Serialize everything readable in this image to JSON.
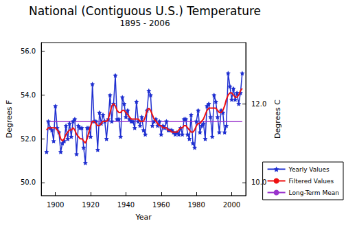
{
  "chart_data": {
    "type": "line",
    "title": "National (Contiguous U.S.) Temperature",
    "subtitle": "1895 - 2006",
    "x_label": "Year",
    "y_label": "Degrees F",
    "y2_label": "Degrees C",
    "legend": "right",
    "xlim": [
      1892,
      2008
    ],
    "xticks": [
      1900,
      1920,
      1940,
      1960,
      1980,
      2000
    ],
    "ylim": [
      49.4,
      56.4
    ],
    "yticks": [
      {
        "value": 50,
        "label": "50.0"
      },
      {
        "value": 52,
        "label": "52.0"
      },
      {
        "value": 54,
        "label": "54.0"
      },
      {
        "value": 56,
        "label": "56.0"
      }
    ],
    "y2lim": [
      9.667,
      13.556
    ],
    "y2ticks": [
      {
        "value": 10,
        "label": "10.0"
      },
      {
        "value": 12,
        "label": "12.0"
      }
    ],
    "x": [
      1895,
      1896,
      1897,
      1898,
      1899,
      1900,
      1901,
      1902,
      1903,
      1904,
      1905,
      1906,
      1907,
      1908,
      1909,
      1910,
      1911,
      1912,
      1913,
      1914,
      1915,
      1916,
      1917,
      1918,
      1919,
      1920,
      1921,
      1922,
      1923,
      1924,
      1925,
      1926,
      1927,
      1928,
      1929,
      1930,
      1931,
      1932,
      1933,
      1934,
      1935,
      1936,
      1937,
      1938,
      1939,
      1940,
      1941,
      1942,
      1943,
      1944,
      1945,
      1946,
      1947,
      1948,
      1949,
      1950,
      1951,
      1952,
      1953,
      1954,
      1955,
      1956,
      1957,
      1958,
      1959,
      1960,
      1961,
      1962,
      1963,
      1964,
      1965,
      1966,
      1967,
      1968,
      1969,
      1970,
      1971,
      1972,
      1973,
      1974,
      1975,
      1976,
      1977,
      1978,
      1979,
      1980,
      1981,
      1982,
      1983,
      1984,
      1985,
      1986,
      1987,
      1988,
      1989,
      1990,
      1991,
      1992,
      1993,
      1994,
      1995,
      1996,
      1997,
      1998,
      1999,
      2000,
      2001,
      2002,
      2003,
      2004,
      2005,
      2006
    ],
    "series": [
      {
        "name": "Yearly Values",
        "color": "#1f2fd0",
        "marker": "star",
        "line_style": "solid",
        "values": [
          51.4,
          52.8,
          52.5,
          52.4,
          51.9,
          53.5,
          52.5,
          52.3,
          51.4,
          51.8,
          51.9,
          52.6,
          52.0,
          52.7,
          52.1,
          52.8,
          52.9,
          51.3,
          52.6,
          52.5,
          52.5,
          51.6,
          50.9,
          52.5,
          52.5,
          52.1,
          54.5,
          52.8,
          52.8,
          51.5,
          53.2,
          52.7,
          53.1,
          52.8,
          52.0,
          52.9,
          54.0,
          52.8,
          53.6,
          54.9,
          52.9,
          52.9,
          52.1,
          53.9,
          53.6,
          53.0,
          53.3,
          52.9,
          52.8,
          52.8,
          52.5,
          53.7,
          52.8,
          52.6,
          53.0,
          52.4,
          52.2,
          53.3,
          54.2,
          54.0,
          52.6,
          52.8,
          52.9,
          52.6,
          52.8,
          52.2,
          52.6,
          52.5,
          52.8,
          52.4,
          52.4,
          52.4,
          52.3,
          52.2,
          52.3,
          52.2,
          52.5,
          52.2,
          52.9,
          52.9,
          52.2,
          52.0,
          53.1,
          51.8,
          51.6,
          52.8,
          53.3,
          52.3,
          52.6,
          52.7,
          52.0,
          53.5,
          53.6,
          53.0,
          52.1,
          54.0,
          53.7,
          53.0,
          52.3,
          53.3,
          53.2,
          52.3,
          52.6,
          55.0,
          54.4,
          53.8,
          54.3,
          53.8,
          54.1,
          53.6,
          54.1,
          55.0
        ]
      },
      {
        "name": "Filtered Values",
        "color": "#ee1111",
        "marker": "none",
        "line_style": "solid",
        "values": [
          52.4,
          52.5,
          52.5,
          52.5,
          52.5,
          52.5,
          52.4,
          52.3,
          52.0,
          51.9,
          52.0,
          52.2,
          52.3,
          52.4,
          52.4,
          52.5,
          52.4,
          52.2,
          52.1,
          52.0,
          52.0,
          51.9,
          51.8,
          52.0,
          52.3,
          52.6,
          52.8,
          52.8,
          52.7,
          52.6,
          52.6,
          52.7,
          52.8,
          52.8,
          52.8,
          52.9,
          53.2,
          53.5,
          53.6,
          53.5,
          53.3,
          53.2,
          53.2,
          53.3,
          53.3,
          53.2,
          53.1,
          53.0,
          52.9,
          52.9,
          52.9,
          52.9,
          52.9,
          52.8,
          52.8,
          52.8,
          53.0,
          53.3,
          53.4,
          53.3,
          53.1,
          52.9,
          52.8,
          52.7,
          52.6,
          52.6,
          52.5,
          52.5,
          52.5,
          52.4,
          52.4,
          52.3,
          52.3,
          52.3,
          52.3,
          52.4,
          52.5,
          52.5,
          52.6,
          52.6,
          52.5,
          52.4,
          52.3,
          52.3,
          52.4,
          52.6,
          52.7,
          52.7,
          52.8,
          52.9,
          53.1,
          53.3,
          53.4,
          53.4,
          53.4,
          53.4,
          53.4,
          53.3,
          53.2,
          53.2,
          53.3,
          53.5,
          53.8,
          54.0,
          54.1,
          54.1,
          54.0,
          53.9,
          53.9,
          54.0,
          54.2,
          54.3
        ]
      },
      {
        "name": "Long-Term Mean",
        "color": "#9933cc",
        "marker": "none",
        "line_style": "solid",
        "type": "hline",
        "value": 52.8
      }
    ]
  }
}
